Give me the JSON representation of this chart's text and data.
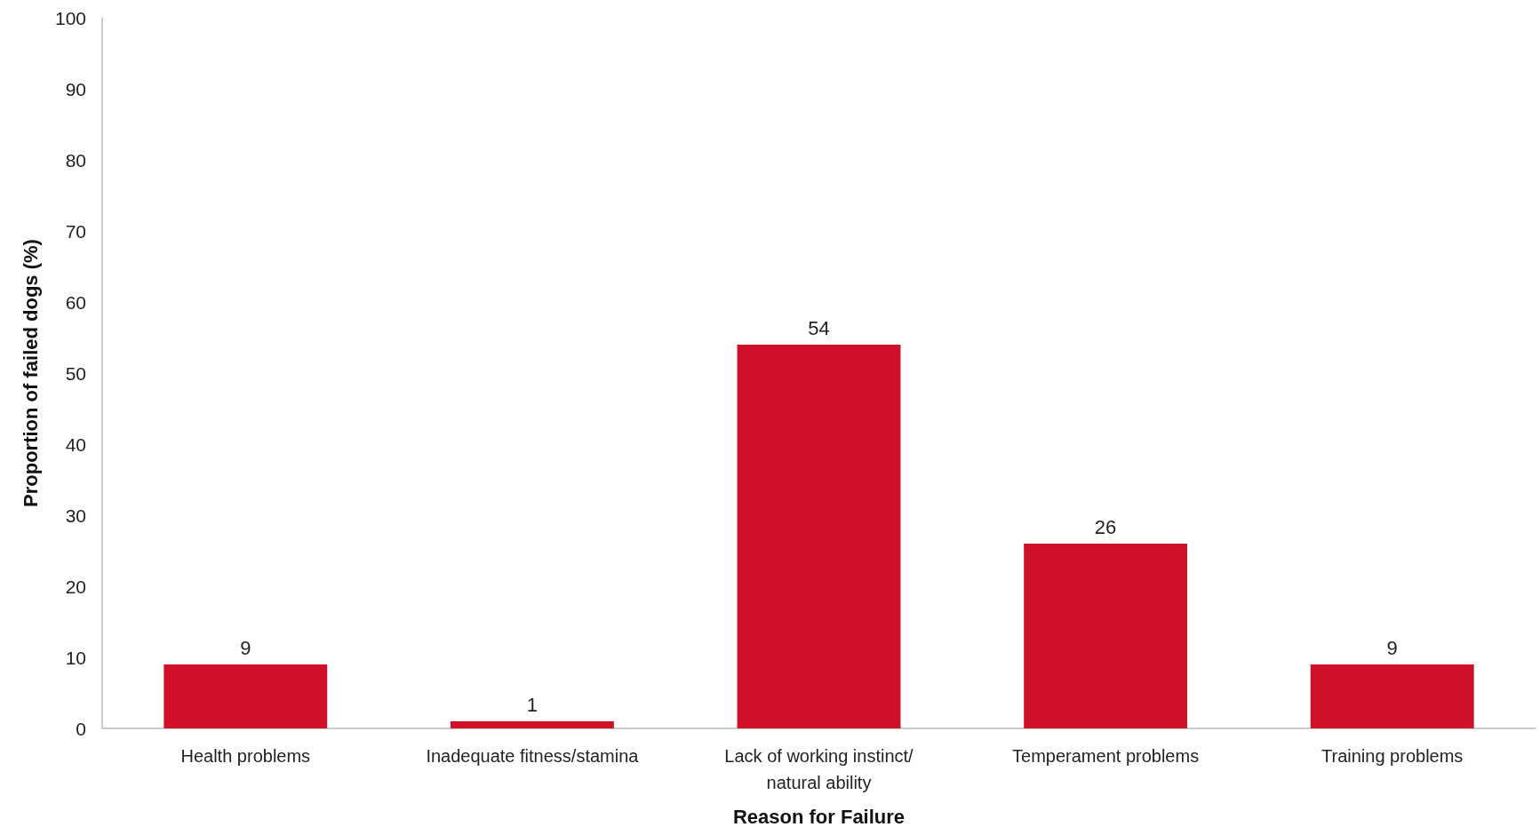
{
  "chart_data": {
    "type": "bar",
    "xlabel": "Reason for Failure",
    "ylabel": "Proportion of failed dogs (%)",
    "categories": [
      "Health problems",
      "Inadequate fitness/stamina",
      "Lack of working instinct/natural ability",
      "Temperament problems",
      "Training problems"
    ],
    "values": [
      9,
      1,
      54,
      26,
      9
    ],
    "color": "#cf1229",
    "ylim": [
      0,
      100
    ],
    "yticks": [
      0,
      10,
      20,
      30,
      40,
      50,
      60,
      70,
      80,
      90,
      100
    ],
    "grid": false,
    "data_labels": true
  }
}
